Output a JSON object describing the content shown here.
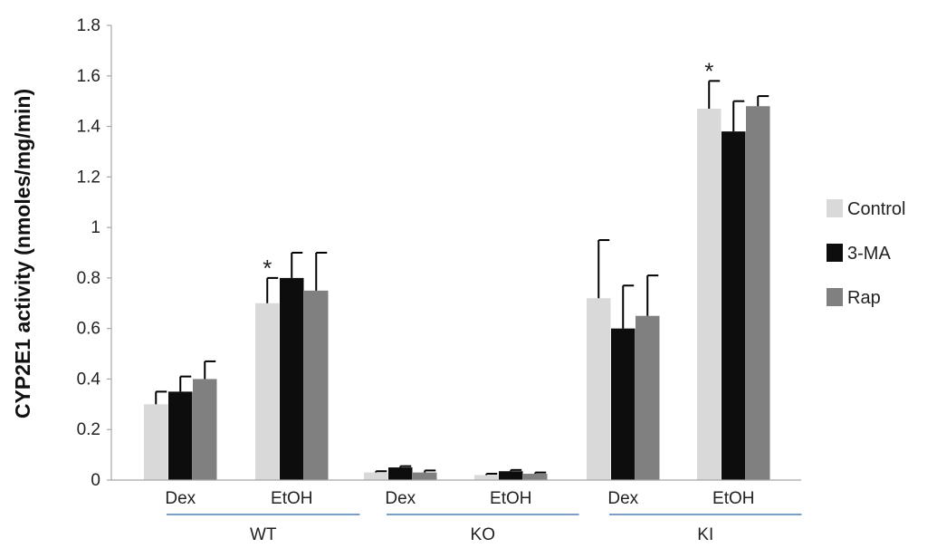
{
  "chart_data": {
    "type": "bar",
    "title": "",
    "xlabel": "",
    "ylabel": "CYP2E1 activity (nmoles/mg/min)",
    "ylim": [
      0,
      1.8
    ],
    "yticks": [
      "0",
      "0.2",
      "0.4",
      "0.6",
      "0.8",
      "1",
      "1.2",
      "1.4",
      "1.6",
      "1.8"
    ],
    "grid": false,
    "legend_position": "right",
    "groups": [
      "WT",
      "KO",
      "KI"
    ],
    "categories": [
      "Dex",
      "EtOH",
      "Dex",
      "EtOH",
      "Dex",
      "EtOH"
    ],
    "category_group": [
      0,
      0,
      1,
      1,
      2,
      2
    ],
    "significance_marker": "*",
    "significant": [
      1,
      5
    ],
    "series": [
      {
        "name": "Control",
        "color": "#d9d9d9",
        "values": [
          0.3,
          0.7,
          0.03,
          0.02,
          0.72,
          1.47
        ],
        "errors": [
          0.05,
          0.1,
          0.005,
          0.005,
          0.23,
          0.11
        ]
      },
      {
        "name": "3-MA",
        "color": "#0d0d0d",
        "values": [
          0.35,
          0.8,
          0.05,
          0.035,
          0.6,
          1.38
        ],
        "errors": [
          0.06,
          0.1,
          0.005,
          0.005,
          0.17,
          0.12
        ]
      },
      {
        "name": "Rap",
        "color": "#808080",
        "values": [
          0.4,
          0.75,
          0.03,
          0.025,
          0.65,
          1.48
        ],
        "errors": [
          0.07,
          0.15,
          0.008,
          0.005,
          0.16,
          0.04
        ]
      }
    ],
    "colors": {
      "axis": "#a6a6a6",
      "group_underline": "#4f81bd",
      "text": "#222222"
    }
  }
}
